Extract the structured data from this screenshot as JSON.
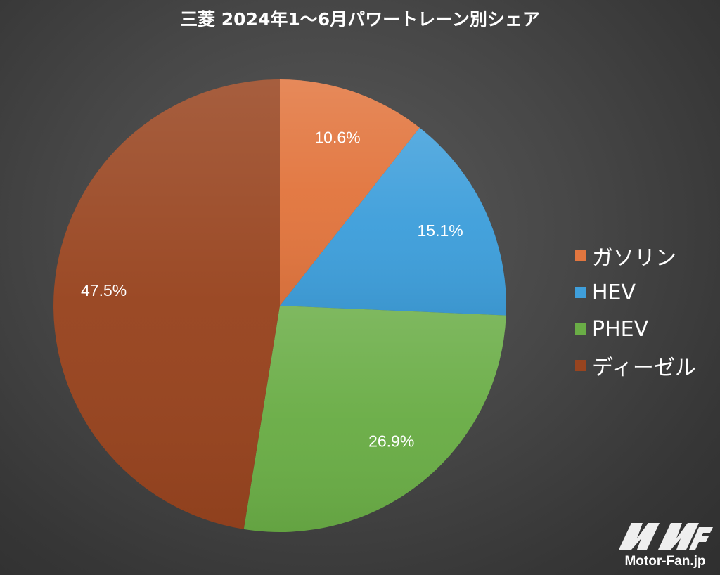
{
  "chart_data": {
    "type": "pie",
    "title": "三菱 2024年1〜6月パワートレーン別シェア",
    "categories": [
      "ガソリン",
      "HEV",
      "PHEV",
      "ディーゼル"
    ],
    "values": [
      10.6,
      15.1,
      26.9,
      47.5
    ],
    "data_labels": [
      "10.6%",
      "15.1%",
      "26.9%",
      "47.5%"
    ],
    "colors": [
      "#e2763f",
      "#3f9fdb",
      "#6aad46",
      "#98441f"
    ],
    "legend_position": "right",
    "start_angle": "12 o'clock",
    "direction": "clockwise"
  },
  "legend": {
    "items": [
      {
        "label": "ガソリン",
        "color": "#e2763f"
      },
      {
        "label": "HEV",
        "color": "#3f9fdb"
      },
      {
        "label": "PHEV",
        "color": "#6aad46"
      },
      {
        "label": "ディーゼル",
        "color": "#98441f"
      }
    ]
  },
  "watermark": {
    "text": "Motor-Fan.jp"
  }
}
